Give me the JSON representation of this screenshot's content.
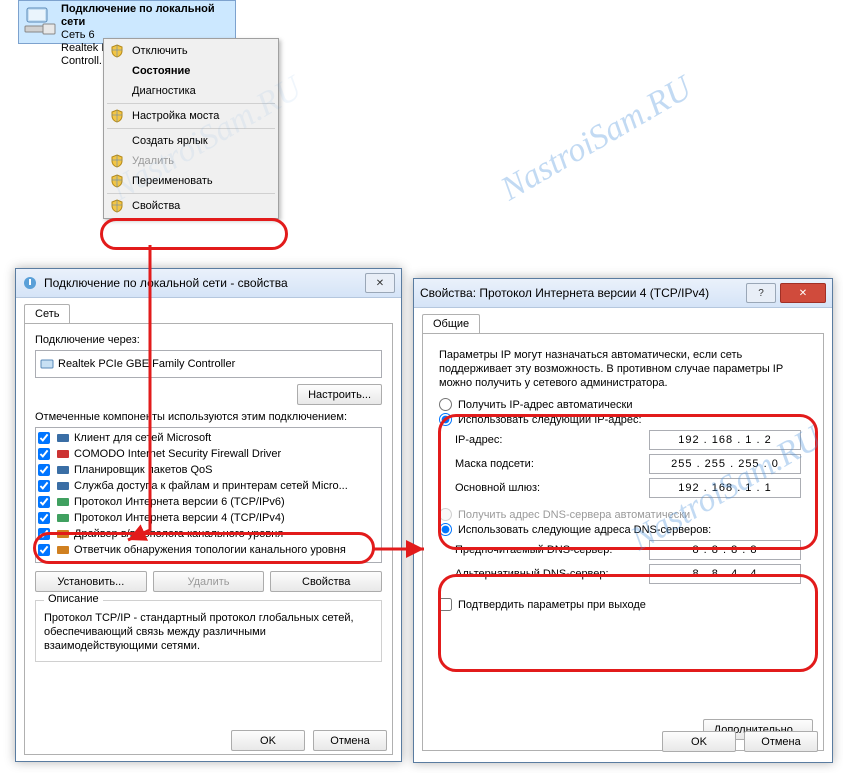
{
  "watermark_text": "NastroiSam.RU",
  "network_item": {
    "title": "Подключение по локальной сети",
    "line2": "Сеть 6",
    "line3": "Realtek PCIe GBE Family Controll..."
  },
  "context_menu": {
    "items": [
      {
        "label": "Отключить",
        "shield": true,
        "bold": false
      },
      {
        "label": "Состояние",
        "shield": false,
        "bold": true
      },
      {
        "label": "Диагностика",
        "shield": false,
        "bold": false
      }
    ],
    "items2": [
      {
        "label": "Настройка моста",
        "shield": true,
        "bold": false
      }
    ],
    "items3": [
      {
        "label": "Создать ярлык",
        "shield": false,
        "bold": false
      },
      {
        "label": "Удалить",
        "shield": true,
        "bold": false,
        "disabled": true
      },
      {
        "label": "Переименовать",
        "shield": true,
        "bold": false
      }
    ],
    "items4": [
      {
        "label": "Свойства",
        "shield": true,
        "bold": false
      }
    ]
  },
  "props_dialog": {
    "title": "Подключение по локальной сети - свойства",
    "tab": "Сеть",
    "connect_via_label": "Подключение через:",
    "adapter": "Realtek PCIe GBE Family Controller",
    "configure_btn": "Настроить...",
    "components_label": "Отмеченные компоненты используются этим подключением:",
    "list": [
      {
        "checked": true,
        "label": "Клиент для сетей Microsoft",
        "icon_color": "#3a6ea5"
      },
      {
        "checked": true,
        "label": "COMODO Internet Security Firewall Driver",
        "icon_color": "#cc3333"
      },
      {
        "checked": true,
        "label": "Планировщик пакетов QoS",
        "icon_color": "#3a6ea5"
      },
      {
        "checked": true,
        "label": "Служба доступа к файлам и принтерам сетей Micro...",
        "icon_color": "#3a6ea5"
      },
      {
        "checked": true,
        "label": "Протокол Интернета версии 6 (TCP/IPv6)",
        "icon_color": "#40a060"
      },
      {
        "checked": true,
        "label": "Протокол Интернета версии 4 (TCP/IPv4)",
        "icon_color": "#40a060"
      },
      {
        "checked": true,
        "label": "Драйвер в/в тополога канального уровня",
        "icon_color": "#d08020"
      },
      {
        "checked": true,
        "label": "Ответчик обнаружения топологии канального уровня",
        "icon_color": "#d08020"
      }
    ],
    "install_btn": "Установить...",
    "remove_btn": "Удалить",
    "props_btn": "Свойства",
    "desc_legend": "Описание",
    "desc_text": "Протокол TCP/IP - стандартный протокол глобальных сетей, обеспечивающий связь между различными взаимодействующими сетями.",
    "ok": "OK",
    "cancel": "Отмена"
  },
  "tcpip_dialog": {
    "title": "Свойства: Протокол Интернета версии 4 (TCP/IPv4)",
    "tab": "Общие",
    "help": "Параметры IP могут назначаться автоматически, если сеть поддерживает эту возможность. В противном случае параметры IP можно получить у сетевого администратора.",
    "auto_ip": "Получить IP-адрес автоматически",
    "use_ip": "Использовать следующий IP-адрес:",
    "ip_label": "IP-адрес:",
    "ip_value": "192 . 168 .   1  .   2",
    "mask_label": "Маска подсети:",
    "mask_value": "255 . 255 . 255 .   0",
    "gw_label": "Основной шлюз:",
    "gw_value": "192 . 168 .   1  .   1",
    "auto_dns": "Получить адрес DNS-сервера автоматически",
    "use_dns": "Использовать следующие адреса DNS-серверов:",
    "dns1_label": "Предпочитаемый DNS-сервер:",
    "dns1_value": "8  .   8  .   8  .   8",
    "dns2_label": "Альтернативный DNS-сервер:",
    "dns2_value": "8  .   8  .   4  .   4",
    "confirm_exit": "Подтвердить параметры при выходе",
    "advanced": "Дополнительно...",
    "ok": "OK",
    "cancel": "Отмена"
  },
  "colors": {
    "highlight": "#e21b1b",
    "arrow": "#e21b1b"
  }
}
